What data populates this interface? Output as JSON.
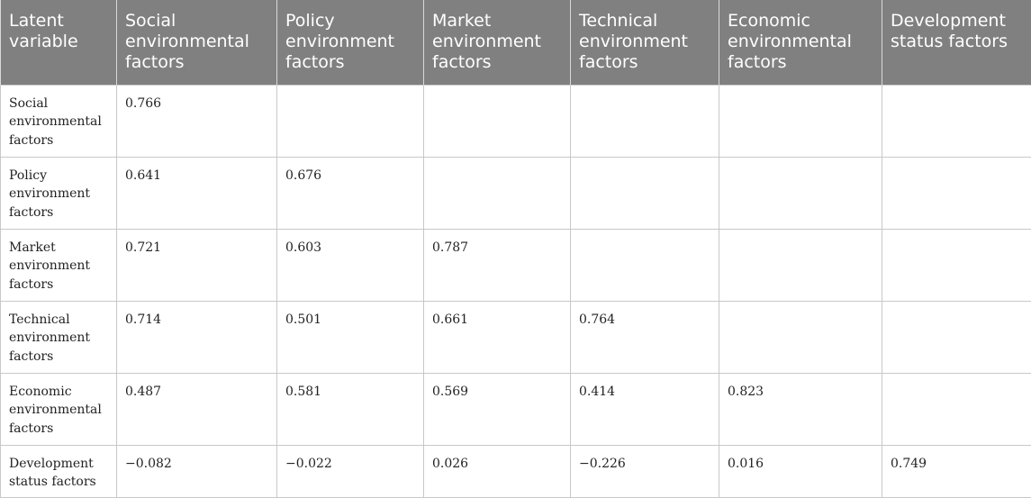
{
  "table": {
    "headers": [
      "Latent variable",
      "Social environmental factors",
      "Policy environment factors",
      "Market environment factors",
      "Technical environment factors",
      "Economic environmental factors",
      "Development status factors"
    ],
    "rows": [
      [
        "Social environmental factors",
        "0.766",
        "",
        "",
        "",
        "",
        ""
      ],
      [
        "Policy environment factors",
        "0.641",
        "0.676",
        "",
        "",
        "",
        ""
      ],
      [
        "Market environment factors",
        "0.721",
        "0.603",
        "0.787",
        "",
        "",
        ""
      ],
      [
        "Technical environment factors",
        "0.714",
        "0.501",
        "0.661",
        "0.764",
        "",
        ""
      ],
      [
        "Economic environmental factors",
        "0.487",
        "0.581",
        "0.569",
        "0.414",
        "0.823",
        ""
      ],
      [
        "Development status factors",
        "−0.082",
        "−0.022",
        "0.026",
        "−0.226",
        "0.016",
        "0.749"
      ]
    ]
  }
}
